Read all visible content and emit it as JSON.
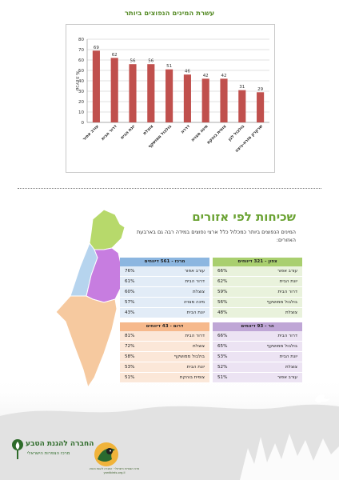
{
  "chart_data": {
    "type": "bar",
    "title": "עשרת המינים הנפוצים ביותר",
    "ylabel": "% שכיחות",
    "ylim": [
      0,
      80
    ],
    "yticks": [
      0,
      10,
      20,
      30,
      40,
      50,
      60,
      70,
      80
    ],
    "categories": [
      "עורב אפור",
      "דרור הבית",
      "יונת הבית",
      "צוצלת",
      "בולבול ממושקף",
      "דררה",
      "מינה מצויה",
      "צופית בוהקת",
      "בולבול לבן",
      "שרקרק מזרח-ביצה"
    ],
    "values": [
      69,
      62,
      56,
      56,
      51,
      46,
      42,
      42,
      31,
      29
    ],
    "bar_color": "#c0504d",
    "grid": true
  },
  "regions": {
    "title": "שכיחות לפי אזורים",
    "description": "המינים הנפוצים ביותר כמכלול כלל ארצי נפוצים במידה רבה גם בארבעת האזורים:",
    "north": {
      "header": "צפון - 321 דיווחים",
      "rows": [
        {
          "name": "עורב אפור",
          "pct": "66%"
        },
        {
          "name": "יונת הבית",
          "pct": "62%"
        },
        {
          "name": "דרור הבית",
          "pct": "59%"
        },
        {
          "name": "בולבול ממושקף",
          "pct": "56%"
        },
        {
          "name": "צוצלת",
          "pct": "48%"
        }
      ]
    },
    "center": {
      "header": "מרכז - 561 דיווחים",
      "rows": [
        {
          "name": "עורב אפור",
          "pct": "76%"
        },
        {
          "name": "דרור הבית",
          "pct": "61%"
        },
        {
          "name": "צוצלת",
          "pct": "60%"
        },
        {
          "name": "מינה מצויה",
          "pct": "57%"
        },
        {
          "name": "יונת הבית",
          "pct": "43%"
        }
      ]
    },
    "south": {
      "header": "דרום - 43 דיווחים",
      "rows": [
        {
          "name": "דרור הבית",
          "pct": "81%"
        },
        {
          "name": "צוצלת",
          "pct": "72%"
        },
        {
          "name": "בולבול ממושקף",
          "pct": "58%"
        },
        {
          "name": "יונת הבית",
          "pct": "53%"
        },
        {
          "name": "צופית בוהקת",
          "pct": "51%"
        }
      ]
    },
    "mountain": {
      "header": "הר - 93 דיווחים",
      "rows": [
        {
          "name": "דרור הבית",
          "pct": "66%"
        },
        {
          "name": "בולבול ממושקף",
          "pct": "65%"
        },
        {
          "name": "יונת הבית",
          "pct": "53%"
        },
        {
          "name": "צוצלת",
          "pct": "52%"
        },
        {
          "name": "עורב אפור",
          "pct": "51%"
        }
      ]
    }
  },
  "map_colors": {
    "north": "#b7d96b",
    "center": "#b6d4ee",
    "mountain": "#c77de0",
    "south": "#f6c99f"
  },
  "footer": {
    "spni_name": "החברה להגנת הטבע",
    "spni_sub": "מרכז הצפרות הישראלי",
    "bird_text": "מרכז הצפרות הישראלי · החברה להגנת הטבע",
    "bird_url": "yardbirds.org.il"
  }
}
